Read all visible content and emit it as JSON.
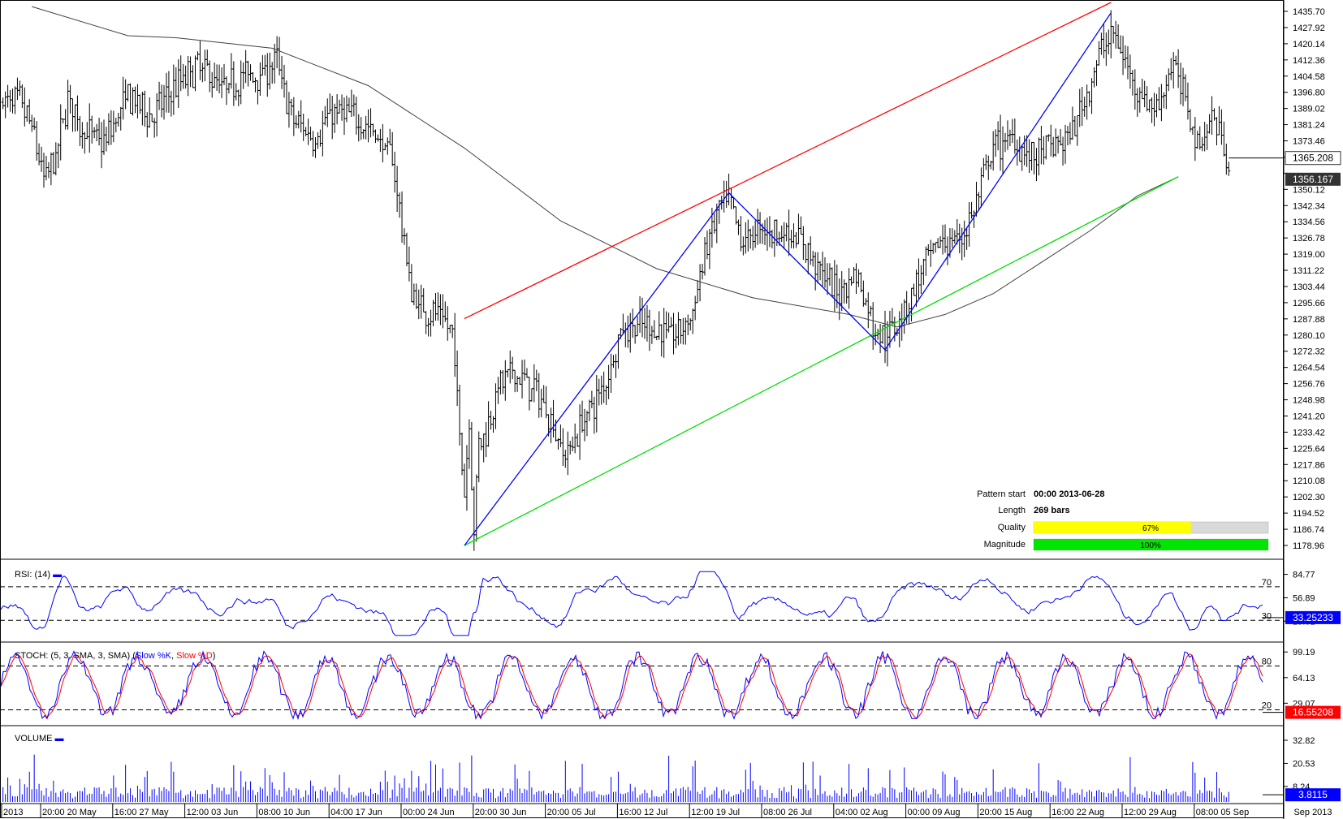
{
  "chart_data": {
    "type": "candlestick",
    "price_panel": {
      "y_ticks": [
        1435.7,
        1427.92,
        1420.14,
        1412.36,
        1404.58,
        1396.8,
        1389.02,
        1381.24,
        1373.46,
        1365.68,
        1357.9,
        1350.12,
        1342.34,
        1334.56,
        1326.78,
        1319.0,
        1311.22,
        1303.44,
        1295.66,
        1287.88,
        1280.1,
        1272.32,
        1264.54,
        1256.76,
        1248.98,
        1241.2,
        1233.42,
        1225.64,
        1217.86,
        1210.08,
        1202.3,
        1194.52,
        1186.74,
        1178.96
      ],
      "y_tick_labels": [
        "1435.70",
        "1427.92",
        "1420.14",
        "1412.36",
        "1404.58",
        "1396.80",
        "1389.02",
        "1381.24",
        "1373.46",
        "",
        "",
        "1350.12",
        "1342.34",
        "1334.56",
        "1326.78",
        "1319.00",
        "1311.22",
        "1303.44",
        "1295.66",
        "1287.88",
        "1280.10",
        "1272.32",
        "1264.54",
        "1256.76",
        "1248.98",
        "1241.20",
        "1233.42",
        "1225.64",
        "1217.86",
        "1210.08",
        "1202.30",
        "1194.52",
        "1186.74",
        "1178.96"
      ],
      "ylim": [
        1175.0,
        1440.0
      ],
      "price_tag": "1365.208",
      "price_tag_value": 1365.208,
      "ma_tag": "1356.167",
      "ma_tag_value": 1356.167,
      "pivots": [
        {
          "bar": 0,
          "price": 1178.96
        },
        {
          "bar": 110,
          "price": 1348.5
        },
        {
          "bar": 175,
          "price": 1273.0
        },
        {
          "bar": 269,
          "price": 1435.0
        }
      ],
      "resistance_line": {
        "from": {
          "bar": 0,
          "price": 1288.0
        },
        "to": {
          "bar": 269,
          "price": 1440.0
        }
      },
      "support_line": {
        "from": {
          "bar": 0,
          "price": 1178.96
        },
        "to": {
          "bar": 297,
          "price": 1356.2
        }
      },
      "moving_average": [
        {
          "bar": -180,
          "price": 1438
        },
        {
          "bar": -140,
          "price": 1424
        },
        {
          "bar": -120,
          "price": 1423
        },
        {
          "bar": -80,
          "price": 1418
        },
        {
          "bar": -40,
          "price": 1400
        },
        {
          "bar": 0,
          "price": 1370
        },
        {
          "bar": 40,
          "price": 1335
        },
        {
          "bar": 80,
          "price": 1312
        },
        {
          "bar": 120,
          "price": 1298
        },
        {
          "bar": 160,
          "price": 1290
        },
        {
          "bar": 180,
          "price": 1284
        },
        {
          "bar": 200,
          "price": 1290
        },
        {
          "bar": 220,
          "price": 1300
        },
        {
          "bar": 240,
          "price": 1315
        },
        {
          "bar": 260,
          "price": 1330
        },
        {
          "bar": 280,
          "price": 1347
        },
        {
          "bar": 297,
          "price": 1356.2
        }
      ],
      "ohlc_path": [
        {
          "bar": -185,
          "price": 1392
        },
        {
          "bar": -180,
          "price": 1380
        },
        {
          "bar": -175,
          "price": 1355
        },
        {
          "bar": -170,
          "price": 1365
        },
        {
          "bar": -165,
          "price": 1395
        },
        {
          "bar": -160,
          "price": 1380
        },
        {
          "bar": -150,
          "price": 1372
        },
        {
          "bar": -140,
          "price": 1395
        },
        {
          "bar": -130,
          "price": 1385
        },
        {
          "bar": -120,
          "price": 1400
        },
        {
          "bar": -110,
          "price": 1410
        },
        {
          "bar": -100,
          "price": 1398
        },
        {
          "bar": -92,
          "price": 1405
        },
        {
          "bar": -85,
          "price": 1405
        },
        {
          "bar": -78,
          "price": 1412
        },
        {
          "bar": -72,
          "price": 1384
        },
        {
          "bar": -62,
          "price": 1375
        },
        {
          "bar": -55,
          "price": 1387
        },
        {
          "bar": -45,
          "price": 1385
        },
        {
          "bar": -38,
          "price": 1378
        },
        {
          "bar": -30,
          "price": 1365
        },
        {
          "bar": -22,
          "price": 1300
        },
        {
          "bar": -17,
          "price": 1292
        },
        {
          "bar": -10,
          "price": 1290
        },
        {
          "bar": -5,
          "price": 1280
        },
        {
          "bar": 2,
          "price": 1240
        },
        {
          "bar": 6,
          "price": 1230
        },
        {
          "bar": 0,
          "price": 1205
        },
        {
          "bar": 4,
          "price": 1185
        },
        {
          "bar": 8,
          "price": 1230
        },
        {
          "bar": 14,
          "price": 1255
        },
        {
          "bar": 20,
          "price": 1262
        },
        {
          "bar": 28,
          "price": 1255
        },
        {
          "bar": 34,
          "price": 1245
        },
        {
          "bar": 42,
          "price": 1222
        },
        {
          "bar": 50,
          "price": 1240
        },
        {
          "bar": 58,
          "price": 1255
        },
        {
          "bar": 65,
          "price": 1282
        },
        {
          "bar": 72,
          "price": 1285
        },
        {
          "bar": 80,
          "price": 1283
        },
        {
          "bar": 88,
          "price": 1280
        },
        {
          "bar": 95,
          "price": 1290
        },
        {
          "bar": 100,
          "price": 1320
        },
        {
          "bar": 106,
          "price": 1340
        },
        {
          "bar": 110,
          "price": 1345
        },
        {
          "bar": 115,
          "price": 1325
        },
        {
          "bar": 122,
          "price": 1330
        },
        {
          "bar": 130,
          "price": 1330
        },
        {
          "bar": 138,
          "price": 1328
        },
        {
          "bar": 146,
          "price": 1315
        },
        {
          "bar": 155,
          "price": 1300
        },
        {
          "bar": 163,
          "price": 1310
        },
        {
          "bar": 170,
          "price": 1285
        },
        {
          "bar": 175,
          "price": 1278
        },
        {
          "bar": 182,
          "price": 1290
        },
        {
          "bar": 190,
          "price": 1310
        },
        {
          "bar": 198,
          "price": 1325
        },
        {
          "bar": 206,
          "price": 1325
        },
        {
          "bar": 212,
          "price": 1340
        },
        {
          "bar": 220,
          "price": 1370
        },
        {
          "bar": 228,
          "price": 1375
        },
        {
          "bar": 236,
          "price": 1365
        },
        {
          "bar": 244,
          "price": 1370
        },
        {
          "bar": 252,
          "price": 1375
        },
        {
          "bar": 260,
          "price": 1400
        },
        {
          "bar": 266,
          "price": 1420
        },
        {
          "bar": 270,
          "price": 1425
        },
        {
          "bar": 276,
          "price": 1408
        },
        {
          "bar": 282,
          "price": 1395
        },
        {
          "bar": 288,
          "price": 1388
        },
        {
          "bar": 294,
          "price": 1410
        },
        {
          "bar": 300,
          "price": 1395
        },
        {
          "bar": 305,
          "price": 1372
        },
        {
          "bar": 312,
          "price": 1385
        },
        {
          "bar": 316,
          "price": 1372
        },
        {
          "bar": 318,
          "price": 1365
        }
      ]
    },
    "x_axis": {
      "labels": [
        "2013",
        "20:00 20 May",
        "16:00 27 May",
        "12:00 03 Jun",
        "08:00 10 Jun",
        "04:00 17 Jun",
        "00:00 24 Jun",
        "20:00 30 Jun",
        "20:00 05 Jul",
        "16:00 12 Jul",
        "12:00 19 Jul",
        "08:00 26 Jul",
        "04:00 02 Aug",
        "00:00 09 Aug",
        "20:00 15 Aug",
        "16:00 22 Aug",
        "12:00 29 Aug",
        "08:00 05 Sep"
      ],
      "label_bars": [
        -195,
        -183,
        -165,
        -148,
        -131,
        -114,
        -97,
        -79,
        -61,
        -43,
        -25,
        -8,
        10,
        28,
        46,
        64,
        82,
        100
      ],
      "right_label": "Sep 2013"
    },
    "pattern_info": {
      "rows": [
        {
          "label": "Pattern start",
          "value": "00:00 2013-06-28"
        },
        {
          "label": "Length",
          "value": "269 bars"
        }
      ],
      "quality": {
        "label": "Quality",
        "text": "67%",
        "value": 0.67,
        "color": "#ffff00"
      },
      "magnitude": {
        "label": "Magnitude",
        "text": "100%",
        "value": 1.0,
        "color": "#00e600"
      }
    },
    "rsi_panel": {
      "title": "RSI: (14)",
      "y_ticks": [
        84.77,
        56.89,
        29.01
      ],
      "y_tick_labels": [
        "84.77",
        "56.89",
        "29.01"
      ],
      "levels": [
        70,
        30
      ],
      "level_labels": [
        "70",
        "30"
      ],
      "ylim": [
        10,
        95
      ],
      "current_tag": "33.25233",
      "current_value": 33.25233,
      "color": "#0000ff"
    },
    "stoch_panel": {
      "title": "STOCH: (5, 3, SMA, 3, SMA)",
      "k_label": "Slow %K",
      "d_label": "Slow %D",
      "y_ticks": [
        99.19,
        64.13,
        29.07
      ],
      "y_tick_labels": [
        "99.19",
        "64.13",
        "29.07"
      ],
      "levels": [
        80,
        20
      ],
      "level_labels": [
        "80",
        "20"
      ],
      "ylim": [
        5,
        105
      ],
      "current_tag": "16.55208",
      "current_value": 16.55208,
      "k_color": "#0000ff",
      "d_color": "#ff0000"
    },
    "volume_panel": {
      "title": "VOLUME",
      "y_ticks": [
        32.82,
        20.53,
        8.24
      ],
      "y_tick_labels": [
        "32.82",
        "20.53",
        "8.24"
      ],
      "ylim": [
        0,
        38
      ],
      "current_tag": "3.8115",
      "current_value": 3.8115,
      "color": "#0000ff"
    },
    "colors": {
      "resistance": "#ff0000",
      "support": "#00dd00",
      "zigzag": "#0000ff",
      "moving_average": "#404040",
      "bars": "#000000",
      "tag_dark": "#333333",
      "tag_blue": "#0000ff",
      "tag_red": "#ff0000"
    }
  }
}
